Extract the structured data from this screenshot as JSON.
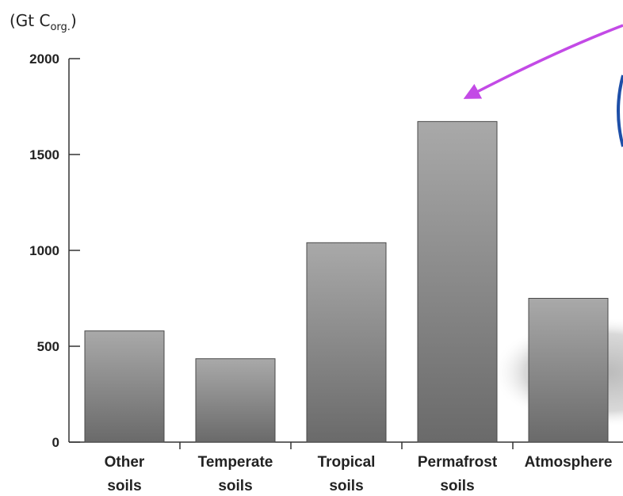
{
  "unit_label": {
    "prefix": "(Gt C",
    "subscript": "org.",
    "suffix": ")"
  },
  "chart_data": {
    "type": "bar",
    "categories": [
      [
        "Other",
        "soils"
      ],
      [
        "Temperate",
        "soils"
      ],
      [
        "Tropical",
        "soils"
      ],
      [
        "Permafrost",
        "soils"
      ],
      [
        "Atmosphere"
      ]
    ],
    "values": [
      580,
      435,
      1040,
      1672,
      750
    ],
    "yticks": [
      0,
      500,
      1000,
      1500,
      2000
    ],
    "ylim": [
      0,
      2000
    ],
    "xlabel": "",
    "ylabel": "",
    "title": "",
    "grid": false,
    "colors": {
      "bar_top": "#a9a9a9",
      "bar_bottom": "#6a6a6a",
      "bar_edge": "#4a4a4a",
      "axis": "#333333",
      "arrow": "#c34ae6",
      "shadow": "#bdbdbd",
      "blue_edge": "#1e4fa8"
    },
    "annotations": [
      {
        "type": "arrow",
        "color": "#c34ae6",
        "points_to": "Permafrost soils"
      }
    ]
  }
}
